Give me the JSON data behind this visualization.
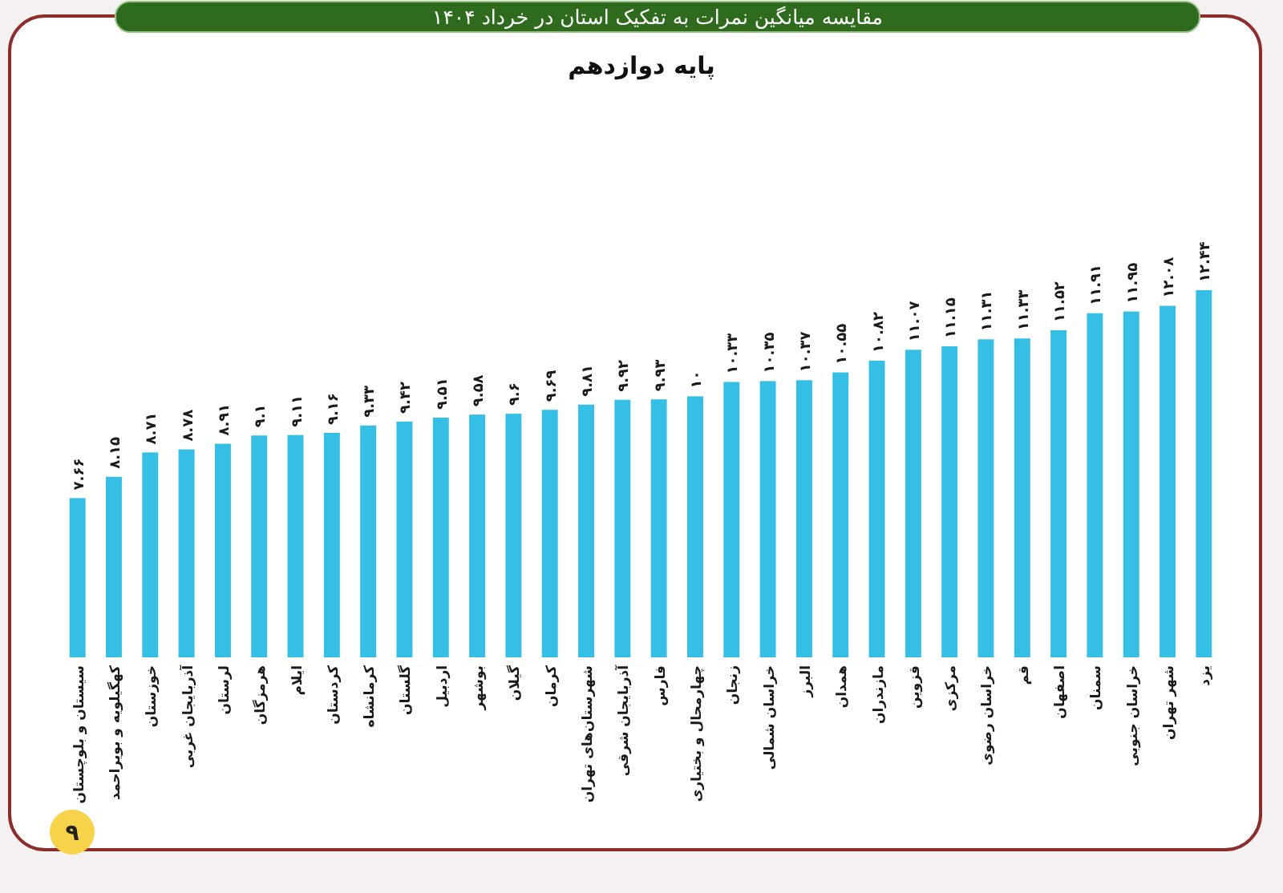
{
  "chart_data": {
    "type": "bar",
    "title": "مقایسه میانگین نمرات به تفکیک استان در خرداد ۱۴۰۴",
    "subtitle": "پایه دوازدهم",
    "categories": [
      "سیستان و بلوچستان",
      "کهگیلویه و بویراحمد",
      "خوزستان",
      "آذربایجان غربی",
      "لرستان",
      "هرمزگان",
      "ایلام",
      "کردستان",
      "کرمانشاه",
      "گلستان",
      "اردبیل",
      "بوشهر",
      "گیلان",
      "کرمان",
      "شهرستان‌های تهران",
      "آذربایجان شرقی",
      "فارس",
      "چهارمحال و بختیاری",
      "زنجان",
      "خراسان شمالی",
      "البرز",
      "همدان",
      "مازندران",
      "قزوین",
      "مرکزی",
      "خراسان رضوی",
      "قم",
      "اصفهان",
      "سمنان",
      "خراسان جنوبی",
      "شهر تهران",
      "یزد"
    ],
    "values": [
      7.66,
      8.15,
      8.71,
      8.78,
      8.91,
      9.1,
      9.11,
      9.16,
      9.33,
      9.42,
      9.51,
      9.58,
      9.6,
      9.69,
      9.81,
      9.92,
      9.93,
      10,
      10.33,
      10.35,
      10.37,
      10.55,
      10.82,
      11.07,
      11.15,
      11.31,
      11.33,
      11.52,
      11.91,
      11.95,
      12.08,
      12.44
    ],
    "value_labels": [
      "۷.۶۶",
      "۸.۱۵",
      "۸.۷۱",
      "۸.۷۸",
      "۸.۹۱",
      "۹.۱",
      "۹.۱۱",
      "۹.۱۶",
      "۹.۳۳",
      "۹.۴۲",
      "۹.۵۱",
      "۹.۵۸",
      "۹.۶",
      "۹.۶۹",
      "۹.۸۱",
      "۹.۹۲",
      "۹.۹۳",
      "۱۰",
      "۱۰.۳۳",
      "۱۰.۳۵",
      "۱۰.۳۷",
      "۱۰.۵۵",
      "۱۰.۸۲",
      "۱۱.۰۷",
      "۱۱.۱۵",
      "۱۱.۳۱",
      "۱۱.۳۳",
      "۱۱.۵۲",
      "۱۱.۹۱",
      "۱۱.۹۵",
      "۱۲.۰۸",
      "۱۲.۴۴"
    ],
    "color": "#35bfe4",
    "ylim": [
      4,
      12.44
    ],
    "tick_labels": "x",
    "annotations": [
      "۹"
    ]
  }
}
